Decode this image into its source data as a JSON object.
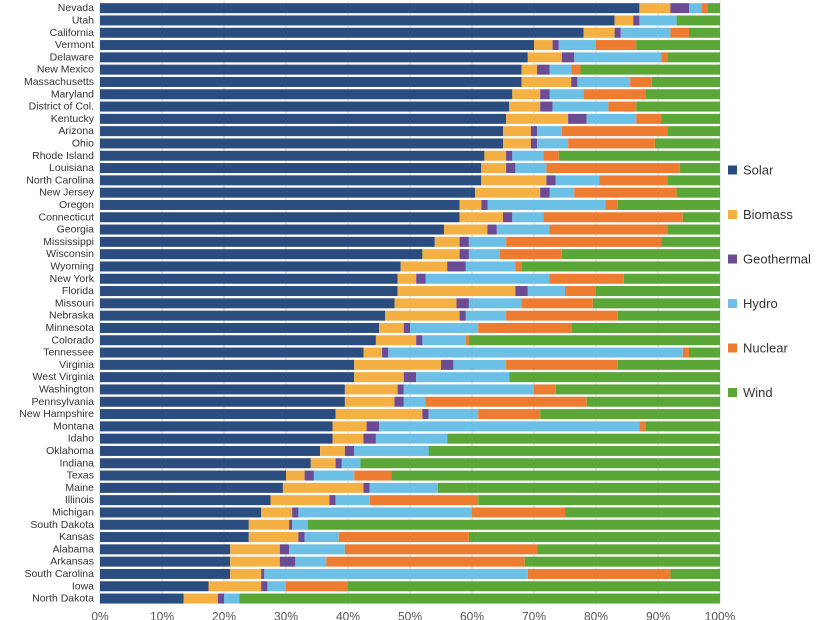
{
  "chart_data": {
    "type": "bar",
    "orientation": "horizontal",
    "stacked": "percent",
    "title": "",
    "xlabel": "",
    "ylabel": "",
    "xlim": [
      0,
      100
    ],
    "x_ticks": [
      "0%",
      "10%",
      "20%",
      "30%",
      "40%",
      "50%",
      "60%",
      "70%",
      "80%",
      "90%",
      "100%"
    ],
    "grid": true,
    "legend_position": "right",
    "categories": [
      "Nevada",
      "Utah",
      "California",
      "Vermont",
      "Delaware",
      "New Mexico",
      "Massachusetts",
      "Maryland",
      "District of Col.",
      "Kentucky",
      "Arizona",
      "Ohio",
      "Rhode Island",
      "Louisiana",
      "North Carolina",
      "New Jersey",
      "Oregon",
      "Connecticut",
      "Georgia",
      "Mississippi",
      "Wisconsin",
      "Wyoming",
      "New York",
      "Florida",
      "Missouri",
      "Nebraska",
      "Minnesota",
      "Colorado",
      "Tennessee",
      "Virginia",
      "West Virginia",
      "Washington",
      "Pennsylvania",
      "New Hampshire",
      "Montana",
      "Idaho",
      "Oklahoma",
      "Indiana",
      "Texas",
      "Maine",
      "Illinois",
      "Michigan",
      "South Dakota",
      "Kansas",
      "Alabama",
      "Arkansas",
      "South Carolina",
      "Iowa",
      "North Dakota"
    ],
    "series": [
      {
        "name": "Solar",
        "color": "#2b4c7e",
        "values": [
          87,
          83,
          78,
          70,
          69,
          68,
          68,
          66.5,
          66,
          65.5,
          65,
          65,
          62,
          61.5,
          61.5,
          60.5,
          58,
          58,
          55.5,
          54,
          52,
          48.5,
          48,
          48,
          47.5,
          46,
          45,
          44.5,
          42.5,
          41,
          41,
          39.5,
          39.5,
          38,
          37.5,
          37.5,
          35.5,
          34,
          30,
          29.5,
          27.5,
          26,
          24,
          24,
          21,
          21,
          21,
          17.5,
          13.5
        ]
      },
      {
        "name": "Biomass",
        "color": "#f4b043",
        "values": [
          5,
          3,
          5,
          3,
          5.5,
          2.5,
          8,
          4.5,
          5,
          10,
          4.5,
          4.5,
          3.5,
          4,
          10.5,
          10.5,
          3.5,
          7,
          7,
          4,
          6,
          7.5,
          3,
          19,
          10,
          12,
          4,
          6.5,
          3,
          14,
          8,
          8.5,
          8,
          14,
          5.5,
          5,
          4,
          4,
          3,
          13,
          9.5,
          5,
          6.5,
          8,
          8,
          8,
          5,
          8.5,
          5.5
        ]
      },
      {
        "name": "Geothermal",
        "color": "#6a4b94",
        "values": [
          3,
          1,
          1,
          1,
          2,
          2,
          1,
          1.5,
          2,
          3,
          1,
          1,
          1,
          1.5,
          1.5,
          1.5,
          1,
          1.5,
          1.5,
          1.5,
          1.5,
          3,
          1.5,
          2,
          2,
          1,
          1,
          1,
          1,
          2,
          2,
          1,
          1.5,
          1,
          2,
          2,
          1.5,
          1,
          1.5,
          1,
          1,
          1,
          0.5,
          1,
          1.5,
          2.5,
          0.5,
          1,
          1
        ]
      },
      {
        "name": "Hydro",
        "color": "#6cbfe5",
        "values": [
          2,
          6,
          8,
          6,
          14,
          3.5,
          8.5,
          5.5,
          9,
          8,
          4,
          5,
          5,
          5,
          7,
          4,
          19,
          5,
          8.5,
          6,
          5,
          8,
          20,
          6,
          8.5,
          6.5,
          11,
          7,
          47.5,
          8.5,
          15,
          21,
          3.5,
          8,
          42,
          11.5,
          12,
          3,
          6.5,
          11,
          5.5,
          28,
          2.5,
          5.5,
          9,
          5,
          42.5,
          3,
          2.5
        ]
      },
      {
        "name": "Nuclear",
        "color": "#ed7c31",
        "values": [
          1,
          0,
          3,
          6.5,
          1,
          1.5,
          3.5,
          10,
          4.5,
          4,
          17,
          14,
          2.5,
          21.5,
          11,
          16.5,
          2,
          22.5,
          19,
          25,
          10,
          1,
          12,
          5,
          11.5,
          18,
          15,
          0.5,
          1,
          18,
          0,
          3.5,
          26,
          10,
          1,
          0,
          0,
          0,
          6,
          0,
          17.5,
          15,
          0,
          21,
          31,
          32,
          23,
          10,
          0
        ]
      },
      {
        "name": "Wind",
        "color": "#5aa637",
        "values": [
          2,
          7,
          5,
          13.5,
          8.5,
          22.5,
          11,
          12,
          13.5,
          9.5,
          8.5,
          10.5,
          26,
          6.5,
          8.5,
          7,
          16.5,
          6,
          8.5,
          9.5,
          25.5,
          32,
          15.5,
          20,
          20.5,
          16.5,
          24,
          40.5,
          5,
          16.5,
          34,
          26.5,
          21.5,
          29,
          12,
          44,
          47,
          58,
          53,
          45.5,
          39,
          25,
          66.5,
          40.5,
          29.5,
          31.5,
          8,
          60,
          77.5
        ]
      }
    ]
  }
}
